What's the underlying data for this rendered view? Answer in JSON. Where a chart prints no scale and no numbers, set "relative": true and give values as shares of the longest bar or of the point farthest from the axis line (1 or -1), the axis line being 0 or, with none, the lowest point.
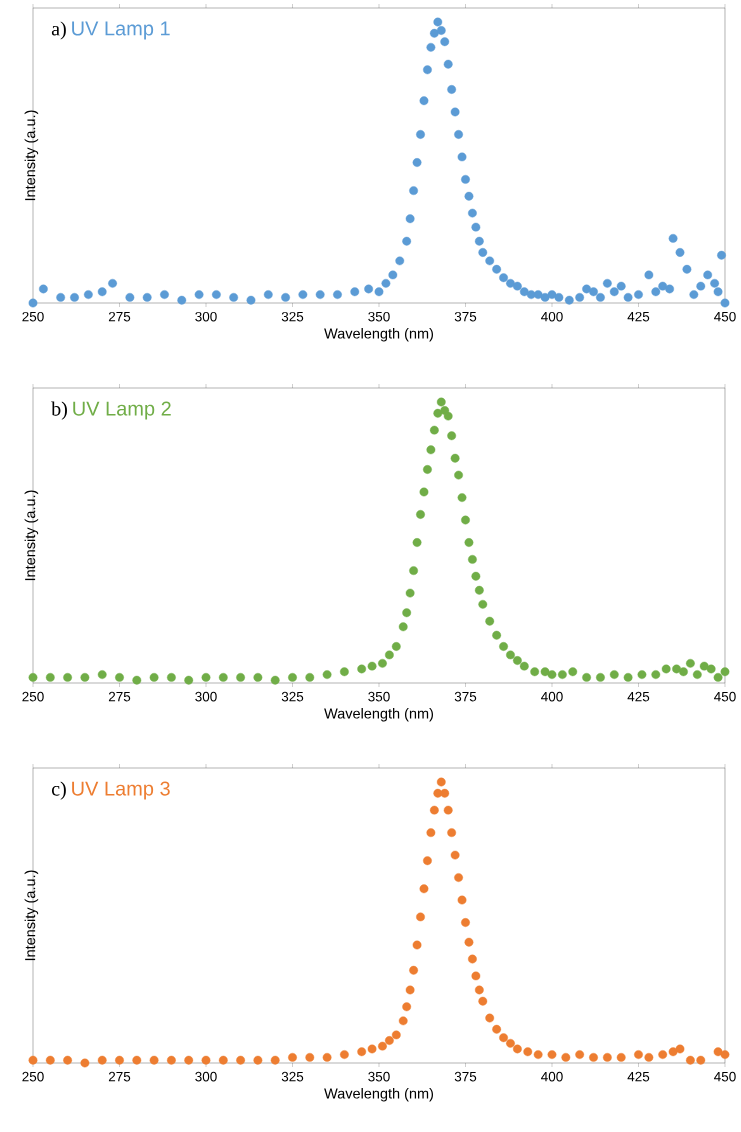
{
  "chart_data": [
    {
      "type": "scatter",
      "title": "a)",
      "xlabel": "Wavelength (nm)",
      "ylabel": "Intensity (a.u.)",
      "relative": true,
      "marker": "circle",
      "xlim": [
        250,
        450
      ],
      "xticks": [
        250,
        275,
        300,
        325,
        350,
        375,
        400,
        425,
        450
      ],
      "x": [
        250,
        253,
        258,
        262,
        266,
        270,
        273,
        278,
        283,
        288,
        293,
        298,
        303,
        308,
        313,
        318,
        323,
        328,
        333,
        338,
        343,
        347,
        350,
        352,
        354,
        356,
        358,
        359,
        360,
        361,
        362,
        363,
        364,
        365,
        366,
        367,
        368,
        369,
        370,
        371,
        372,
        373,
        374,
        375,
        376,
        377,
        378,
        379,
        380,
        382,
        384,
        386,
        388,
        390,
        392,
        394,
        396,
        398,
        400,
        402,
        405,
        408,
        410,
        412,
        414,
        416,
        418,
        420,
        422,
        425,
        428,
        430,
        432,
        434,
        435,
        437,
        439,
        441,
        443,
        445,
        447,
        448,
        449,
        450
      ],
      "series": [
        {
          "name": "UV Lamp 1",
          "color": "#5b9bd5",
          "values": [
            0.0,
            0.05,
            0.02,
            0.02,
            0.03,
            0.04,
            0.07,
            0.02,
            0.02,
            0.03,
            0.01,
            0.03,
            0.03,
            0.02,
            0.01,
            0.03,
            0.02,
            0.03,
            0.03,
            0.03,
            0.04,
            0.05,
            0.04,
            0.07,
            0.1,
            0.15,
            0.22,
            0.3,
            0.4,
            0.5,
            0.6,
            0.72,
            0.83,
            0.91,
            0.96,
            1.0,
            0.97,
            0.93,
            0.85,
            0.76,
            0.68,
            0.6,
            0.52,
            0.44,
            0.38,
            0.32,
            0.27,
            0.22,
            0.18,
            0.15,
            0.12,
            0.09,
            0.07,
            0.06,
            0.04,
            0.03,
            0.03,
            0.02,
            0.03,
            0.02,
            0.01,
            0.02,
            0.05,
            0.04,
            0.02,
            0.07,
            0.04,
            0.06,
            0.02,
            0.03,
            0.1,
            0.04,
            0.06,
            0.05,
            0.23,
            0.18,
            0.12,
            0.03,
            0.06,
            0.1,
            0.07,
            0.04,
            0.17,
            0.0
          ]
        }
      ]
    },
    {
      "type": "scatter",
      "title": "b)",
      "xlabel": "Wavelength (nm)",
      "ylabel": "Intensity (a.u.)",
      "relative": true,
      "marker": "circle",
      "xlim": [
        250,
        450
      ],
      "xticks": [
        250,
        275,
        300,
        325,
        350,
        375,
        400,
        425,
        450
      ],
      "x": [
        250,
        255,
        260,
        265,
        270,
        275,
        280,
        285,
        290,
        295,
        300,
        305,
        310,
        315,
        320,
        325,
        330,
        335,
        340,
        345,
        348,
        351,
        353,
        355,
        357,
        358,
        359,
        360,
        361,
        362,
        363,
        364,
        365,
        366,
        367,
        368,
        369,
        370,
        371,
        372,
        373,
        374,
        375,
        376,
        377,
        378,
        379,
        380,
        382,
        384,
        386,
        388,
        390,
        392,
        395,
        398,
        400,
        403,
        406,
        410,
        414,
        418,
        422,
        426,
        430,
        433,
        436,
        438,
        440,
        442,
        444,
        446,
        448,
        450
      ],
      "series": [
        {
          "name": "UV Lamp 2",
          "color": "#70ad47",
          "values": [
            0.02,
            0.02,
            0.02,
            0.02,
            0.03,
            0.02,
            0.01,
            0.02,
            0.02,
            0.01,
            0.02,
            0.02,
            0.02,
            0.02,
            0.01,
            0.02,
            0.02,
            0.03,
            0.04,
            0.05,
            0.06,
            0.07,
            0.1,
            0.13,
            0.2,
            0.25,
            0.32,
            0.4,
            0.5,
            0.6,
            0.68,
            0.76,
            0.83,
            0.9,
            0.96,
            1.0,
            0.97,
            0.95,
            0.88,
            0.8,
            0.74,
            0.66,
            0.58,
            0.5,
            0.44,
            0.38,
            0.33,
            0.28,
            0.22,
            0.17,
            0.13,
            0.1,
            0.08,
            0.06,
            0.04,
            0.04,
            0.03,
            0.03,
            0.04,
            0.02,
            0.02,
            0.03,
            0.02,
            0.03,
            0.03,
            0.05,
            0.05,
            0.04,
            0.07,
            0.03,
            0.06,
            0.05,
            0.02,
            0.04
          ]
        }
      ]
    },
    {
      "type": "scatter",
      "title": "c)",
      "xlabel": "Wavelength (nm)",
      "ylabel": "Intensity (a.u.)",
      "relative": true,
      "marker": "circle",
      "xlim": [
        250,
        450
      ],
      "xticks": [
        250,
        275,
        300,
        325,
        350,
        375,
        400,
        425,
        450
      ],
      "x": [
        250,
        255,
        260,
        265,
        270,
        275,
        280,
        285,
        290,
        295,
        300,
        305,
        310,
        315,
        320,
        325,
        330,
        335,
        340,
        345,
        348,
        351,
        353,
        355,
        357,
        358,
        359,
        360,
        361,
        362,
        363,
        364,
        365,
        366,
        367,
        368,
        369,
        370,
        371,
        372,
        373,
        374,
        375,
        376,
        377,
        378,
        379,
        380,
        382,
        384,
        386,
        388,
        390,
        393,
        396,
        400,
        404,
        408,
        412,
        416,
        420,
        425,
        428,
        432,
        435,
        437,
        440,
        443,
        448,
        450
      ],
      "series": [
        {
          "name": "UV Lamp 3",
          "color": "#ed7d31",
          "values": [
            0.01,
            0.01,
            0.01,
            0.0,
            0.01,
            0.01,
            0.01,
            0.01,
            0.01,
            0.01,
            0.01,
            0.01,
            0.01,
            0.01,
            0.01,
            0.02,
            0.02,
            0.02,
            0.03,
            0.04,
            0.05,
            0.06,
            0.08,
            0.1,
            0.15,
            0.2,
            0.26,
            0.33,
            0.42,
            0.52,
            0.62,
            0.72,
            0.82,
            0.9,
            0.96,
            1.0,
            0.96,
            0.9,
            0.82,
            0.74,
            0.66,
            0.58,
            0.5,
            0.43,
            0.37,
            0.31,
            0.26,
            0.22,
            0.16,
            0.12,
            0.09,
            0.07,
            0.05,
            0.04,
            0.03,
            0.03,
            0.02,
            0.03,
            0.02,
            0.02,
            0.02,
            0.03,
            0.02,
            0.03,
            0.04,
            0.05,
            0.01,
            0.01,
            0.04,
            0.03
          ]
        }
      ]
    }
  ]
}
